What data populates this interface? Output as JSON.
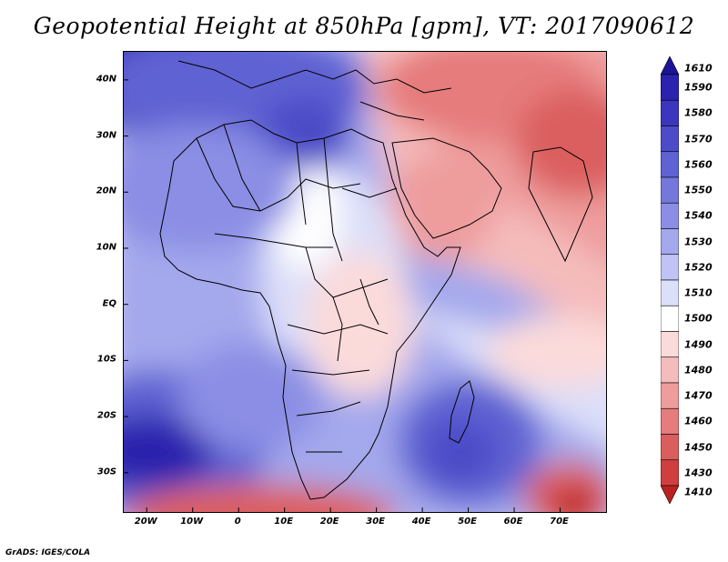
{
  "title": "Geopotential Height at 850hPa [gpm], VT: 2017090612",
  "footer": "GrADS: IGES/COLA",
  "map": {
    "lon_range": [
      -25,
      80
    ],
    "lat_range": [
      -37,
      45
    ],
    "lat_labels": [
      "40N",
      "30N",
      "20N",
      "10N",
      "EQ",
      "10S",
      "20S",
      "30S"
    ],
    "lat_values": [
      40,
      30,
      20,
      10,
      0,
      -10,
      -20,
      -30
    ],
    "lon_labels": [
      "20W",
      "10W",
      "0",
      "10E",
      "20E",
      "30E",
      "40E",
      "50E",
      "60E",
      "70E"
    ],
    "lon_values": [
      -20,
      -10,
      0,
      10,
      20,
      30,
      40,
      50,
      60,
      70
    ],
    "field_name": "Geopotential Height 850hPa",
    "units": "gpm"
  },
  "colorbar": {
    "labels": [
      "1610",
      "1590",
      "1580",
      "1570",
      "1560",
      "1550",
      "1540",
      "1530",
      "1520",
      "1510",
      "1500",
      "1490",
      "1480",
      "1470",
      "1460",
      "1450",
      "1430",
      "1410"
    ],
    "colors": [
      "#1a1496",
      "#2b23ad",
      "#3b36bd",
      "#4c4cc8",
      "#5f62d2",
      "#7478dc",
      "#8b8ee4",
      "#a4a8ec",
      "#c0c3f3",
      "#dcdff9",
      "#ffffff",
      "#fbdada",
      "#f5bcbc",
      "#ee9c9c",
      "#e67c7c",
      "#db5e5e",
      "#cf3f3f",
      "#bb2121"
    ]
  }
}
